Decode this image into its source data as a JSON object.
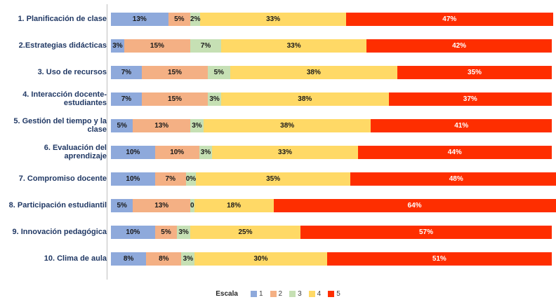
{
  "chart_data": {
    "type": "bar",
    "orientation": "horizontal",
    "stacked": true,
    "unit": "%",
    "xlim": [
      0,
      100
    ],
    "grid": false,
    "legend_position": "bottom",
    "categories": [
      "1. Planificación de clase",
      "2.Estrategias didácticas",
      "3. Uso de recursos",
      "4. Interacción docente-estudiantes",
      "5. Gestión del tiempo y la clase",
      "6. Evaluación del aprendizaje",
      "7. Compromiso docente",
      "8. Participación estudiantil",
      "9. Innovación pedagógica",
      "10. Clima de aula"
    ],
    "series": [
      {
        "name": "1",
        "color": "#8EA9DB",
        "values": [
          13,
          3,
          7,
          7,
          5,
          10,
          10,
          5,
          10,
          8
        ],
        "labels": [
          "13%",
          "3%",
          "7%",
          "7%",
          "5%",
          "10%",
          "10%",
          "5%",
          "10%",
          "8%"
        ]
      },
      {
        "name": "2",
        "color": "#F4B084",
        "values": [
          5,
          15,
          15,
          15,
          13,
          10,
          7,
          13,
          5,
          8
        ],
        "labels": [
          "5%",
          "15%",
          "15%",
          "15%",
          "13%",
          "10%",
          "7%",
          "13%",
          "5%",
          "8%"
        ]
      },
      {
        "name": "3",
        "color": "#C6E0B4",
        "values": [
          2,
          7,
          5,
          3,
          3,
          3,
          0,
          0,
          3,
          3
        ],
        "labels": [
          "2%",
          "7%",
          "5%",
          "3%",
          "3%",
          "3%",
          "0%",
          "0",
          "3%",
          "3%"
        ]
      },
      {
        "name": "4",
        "color": "#FFD966",
        "values": [
          33,
          33,
          38,
          38,
          38,
          33,
          35,
          18,
          25,
          30
        ],
        "labels": [
          "33%",
          "33%",
          "38%",
          "38%",
          "38%",
          "33%",
          "35%",
          "18%",
          "25%",
          "30%"
        ]
      },
      {
        "name": "5",
        "color": "#FE2E00",
        "values": [
          47,
          42,
          35,
          37,
          41,
          44,
          48,
          64,
          57,
          51
        ],
        "labels": [
          "47%",
          "42%",
          "35%",
          "37%",
          "41%",
          "44%",
          "48%",
          "64%",
          "57%",
          "51%"
        ]
      }
    ]
  },
  "legend": {
    "title": "Escala",
    "items": [
      {
        "label": "1",
        "color": "#8EA9DB"
      },
      {
        "label": "2",
        "color": "#F4B084"
      },
      {
        "label": "3",
        "color": "#C6E0B4"
      },
      {
        "label": "4",
        "color": "#FFD966"
      },
      {
        "label": "5",
        "color": "#FE2E00"
      }
    ]
  }
}
